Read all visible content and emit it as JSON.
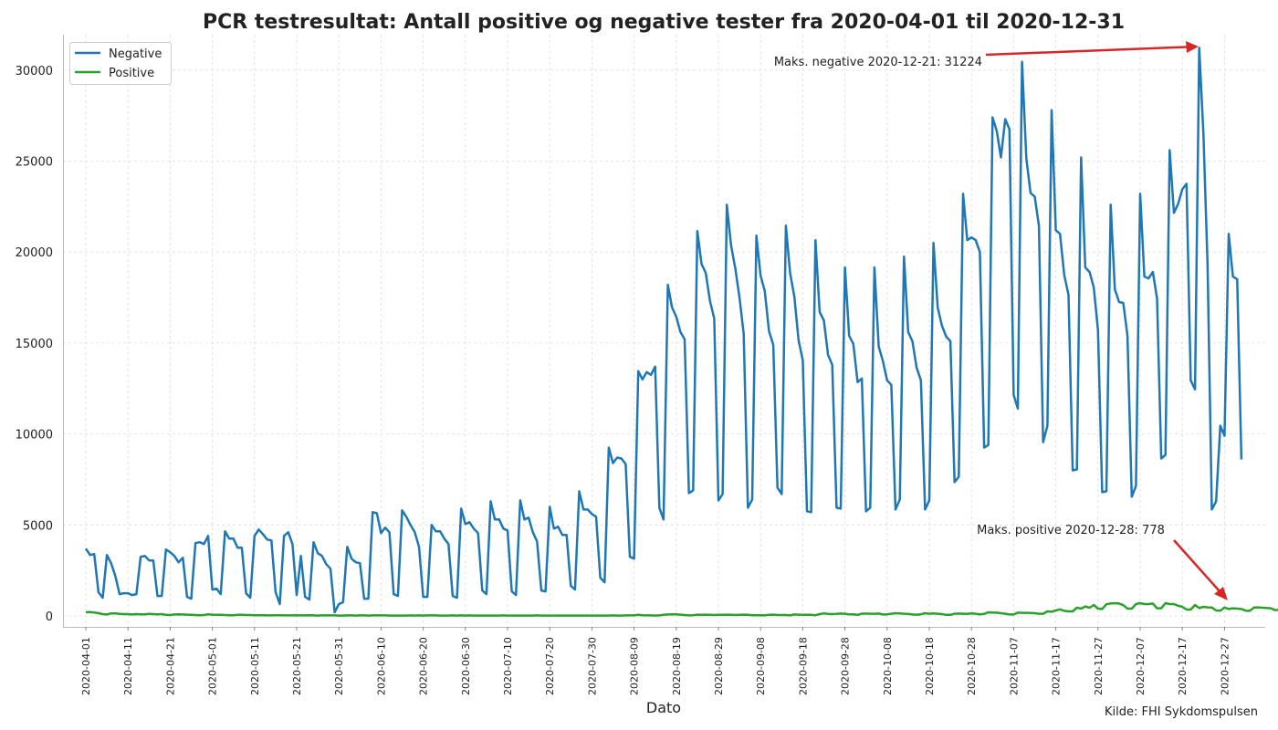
{
  "chart_data": {
    "type": "line",
    "title": "PCR testresultat: Antall positive og negative tester fra 2020-04-01 til 2020-12-31",
    "xlabel": "Dato",
    "ylabel": "",
    "source": "Kilde: FHI Sykdomspulsen",
    "x_start": "2020-04-01",
    "x_end": "2020-12-31",
    "xticks": [
      "2020-04-01",
      "2020-04-11",
      "2020-04-21",
      "2020-05-01",
      "2020-05-11",
      "2020-05-21",
      "2020-05-31",
      "2020-06-10",
      "2020-06-20",
      "2020-06-30",
      "2020-07-10",
      "2020-07-20",
      "2020-07-30",
      "2020-08-09",
      "2020-08-19",
      "2020-08-29",
      "2020-09-08",
      "2020-09-18",
      "2020-09-28",
      "2020-10-08",
      "2020-10-18",
      "2020-10-28",
      "2020-11-07",
      "2020-11-17",
      "2020-11-27",
      "2020-12-07",
      "2020-12-17",
      "2020-12-27"
    ],
    "yticks": [
      0,
      5000,
      10000,
      15000,
      20000,
      25000,
      30000
    ],
    "ylim": [
      -600,
      31900
    ],
    "grid": true,
    "legend_position": "top-left",
    "annotations": [
      {
        "text": "Maks. negative 2020-12-21: 31224",
        "series": "Negative",
        "date": "2020-12-21",
        "value": 31224
      },
      {
        "text": "Maks. positive 2020-12-28: 778",
        "series": "Positive",
        "date": "2020-12-28",
        "value": 778
      }
    ],
    "series": [
      {
        "name": "Negative",
        "color": "#1f77b4",
        "values": [
          3700,
          3350,
          3400,
          1300,
          1000,
          3350,
          2900,
          2200,
          1200,
          1250,
          1250,
          1150,
          1200,
          3250,
          3300,
          3050,
          3050,
          1100,
          1100,
          3650,
          3500,
          3300,
          2950,
          3200,
          1050,
          950,
          4000,
          4050,
          3950,
          4400,
          1450,
          1500,
          1200,
          4650,
          4250,
          4250,
          3750,
          3750,
          1250,
          1000,
          4400,
          4750,
          4500,
          4200,
          4150,
          1300,
          650,
          4400,
          4600,
          3950,
          1150,
          3300,
          1050,
          900,
          4050,
          3450,
          3300,
          2850,
          2600,
          200,
          650,
          750,
          3800,
          3150,
          2950,
          2900,
          950,
          950,
          5700,
          5650,
          4550,
          4850,
          4600,
          1200,
          1100,
          5800,
          5450,
          5000,
          4600,
          3800,
          1050,
          1050,
          5000,
          4650,
          4650,
          4250,
          3950,
          1100,
          1000,
          5900,
          5050,
          5150,
          4800,
          4550,
          1400,
          1200,
          6300,
          5300,
          5300,
          4800,
          4700,
          1350,
          1150,
          6350,
          5300,
          5400,
          4600,
          4100,
          1400,
          1350,
          6000,
          4800,
          4900,
          4450,
          4450,
          1650,
          1450,
          6850,
          5850,
          5850,
          5600,
          5450,
          2100,
          1850,
          9250,
          8400,
          8700,
          8650,
          8350,
          3250,
          3150,
          13450,
          13000,
          13400,
          13250,
          13700,
          5950,
          5300,
          18200,
          16950,
          16450,
          15600,
          15200,
          6750,
          6900,
          21150,
          19350,
          18850,
          17300,
          16350,
          6350,
          6700,
          22600,
          20350,
          19100,
          17500,
          15500,
          5950,
          6400,
          20900,
          18700,
          17850,
          15650,
          14900,
          7050,
          6700,
          21450,
          18850,
          17550,
          15150,
          14050,
          5750,
          5700,
          20650,
          16700,
          16250,
          14350,
          13800,
          5950,
          5900,
          19150,
          15400,
          14950,
          12850,
          13050,
          5750,
          5950,
          19150,
          14800,
          14000,
          12950,
          12700,
          5850,
          6400,
          19750,
          15600,
          15100,
          13650,
          12950,
          5850,
          6350,
          20500,
          16950,
          15950,
          15350,
          15100,
          7350,
          7650,
          23200,
          20650,
          20800,
          20650,
          20000,
          9250,
          9400,
          27400,
          26650,
          25200,
          27300,
          26750,
          12150,
          11400,
          30450,
          25150,
          23250,
          23050,
          21450,
          9550,
          10450,
          27800,
          21200,
          21000,
          18750,
          17650,
          8000,
          8050,
          25200,
          19150,
          18900,
          18050,
          15700,
          6800,
          6850,
          22600,
          17950,
          17250,
          17200,
          15400,
          6550,
          7150,
          23200,
          18650,
          18550,
          18900,
          17450,
          8650,
          8850,
          25600,
          22150,
          22650,
          23450,
          23750,
          12950,
          12450,
          31224,
          26500,
          19200,
          5850,
          6300,
          10450,
          9900,
          21000,
          18650,
          18500,
          8600
        ],
        "has_leading_dot": false
      },
      {
        "name": "Positive",
        "color": "#2ca02c",
        "values": [
          200,
          210,
          190,
          150,
          100,
          80,
          140,
          140,
          110,
          100,
          100,
          80,
          100,
          90,
          90,
          110,
          100,
          90,
          100,
          60,
          50,
          80,
          90,
          80,
          70,
          60,
          50,
          40,
          50,
          90,
          70,
          60,
          60,
          50,
          40,
          40,
          60,
          60,
          50,
          50,
          40,
          40,
          40,
          30,
          30,
          40,
          40,
          30,
          30,
          30,
          40,
          30,
          30,
          40,
          30,
          20,
          30,
          30,
          30,
          30,
          20,
          20,
          30,
          30,
          20,
          30,
          30,
          20,
          30,
          30,
          30,
          30,
          20,
          20,
          20,
          20,
          20,
          30,
          20,
          30,
          20,
          30,
          30,
          30,
          20,
          20,
          20,
          30,
          20,
          30,
          20,
          30,
          20,
          20,
          20,
          20,
          20,
          20,
          20,
          30,
          20,
          20,
          20,
          20,
          20,
          20,
          20,
          30,
          20,
          20,
          20,
          20,
          20,
          20,
          20,
          20,
          20,
          20,
          20,
          20,
          20,
          20,
          20,
          20,
          20,
          30,
          20,
          20,
          30,
          30,
          30,
          60,
          40,
          30,
          30,
          20,
          30,
          60,
          80,
          90,
          90,
          70,
          50,
          30,
          40,
          70,
          60,
          70,
          60,
          50,
          60,
          60,
          70,
          60,
          50,
          60,
          70,
          60,
          40,
          40,
          40,
          30,
          60,
          70,
          50,
          50,
          50,
          30,
          80,
          70,
          60,
          60,
          60,
          40,
          100,
          140,
          110,
          100,
          110,
          130,
          120,
          90,
          90,
          60,
          120,
          130,
          120,
          120,
          130,
          80,
          90,
          120,
          150,
          140,
          120,
          110,
          80,
          70,
          90,
          150,
          120,
          140,
          120,
          100,
          60,
          60,
          120,
          130,
          120,
          110,
          140,
          120,
          90,
          110,
          200,
          180,
          180,
          150,
          120,
          80,
          80,
          180,
          170,
          170,
          160,
          150,
          120,
          120,
          250,
          230,
          300,
          360,
          280,
          250,
          250,
          450,
          400,
          520,
          450,
          600,
          400,
          380,
          640,
          680,
          700,
          680,
          590,
          400,
          400,
          650,
          700,
          650,
          650,
          680,
          420,
          420,
          700,
          650,
          650,
          560,
          500,
          350,
          350,
          600,
          430,
          500,
          470,
          460,
          300,
          290,
          460,
          380,
          420,
          400,
          380,
          290,
          280,
          460,
          470,
          450,
          440,
          420,
          320,
          340,
          520,
          460,
          480,
          460,
          480,
          330,
          330,
          580,
          560,
          600,
          340,
          330,
          450,
          520,
          778,
          700,
          650,
          470
        ],
        "has_leading_dot": false
      }
    ]
  }
}
